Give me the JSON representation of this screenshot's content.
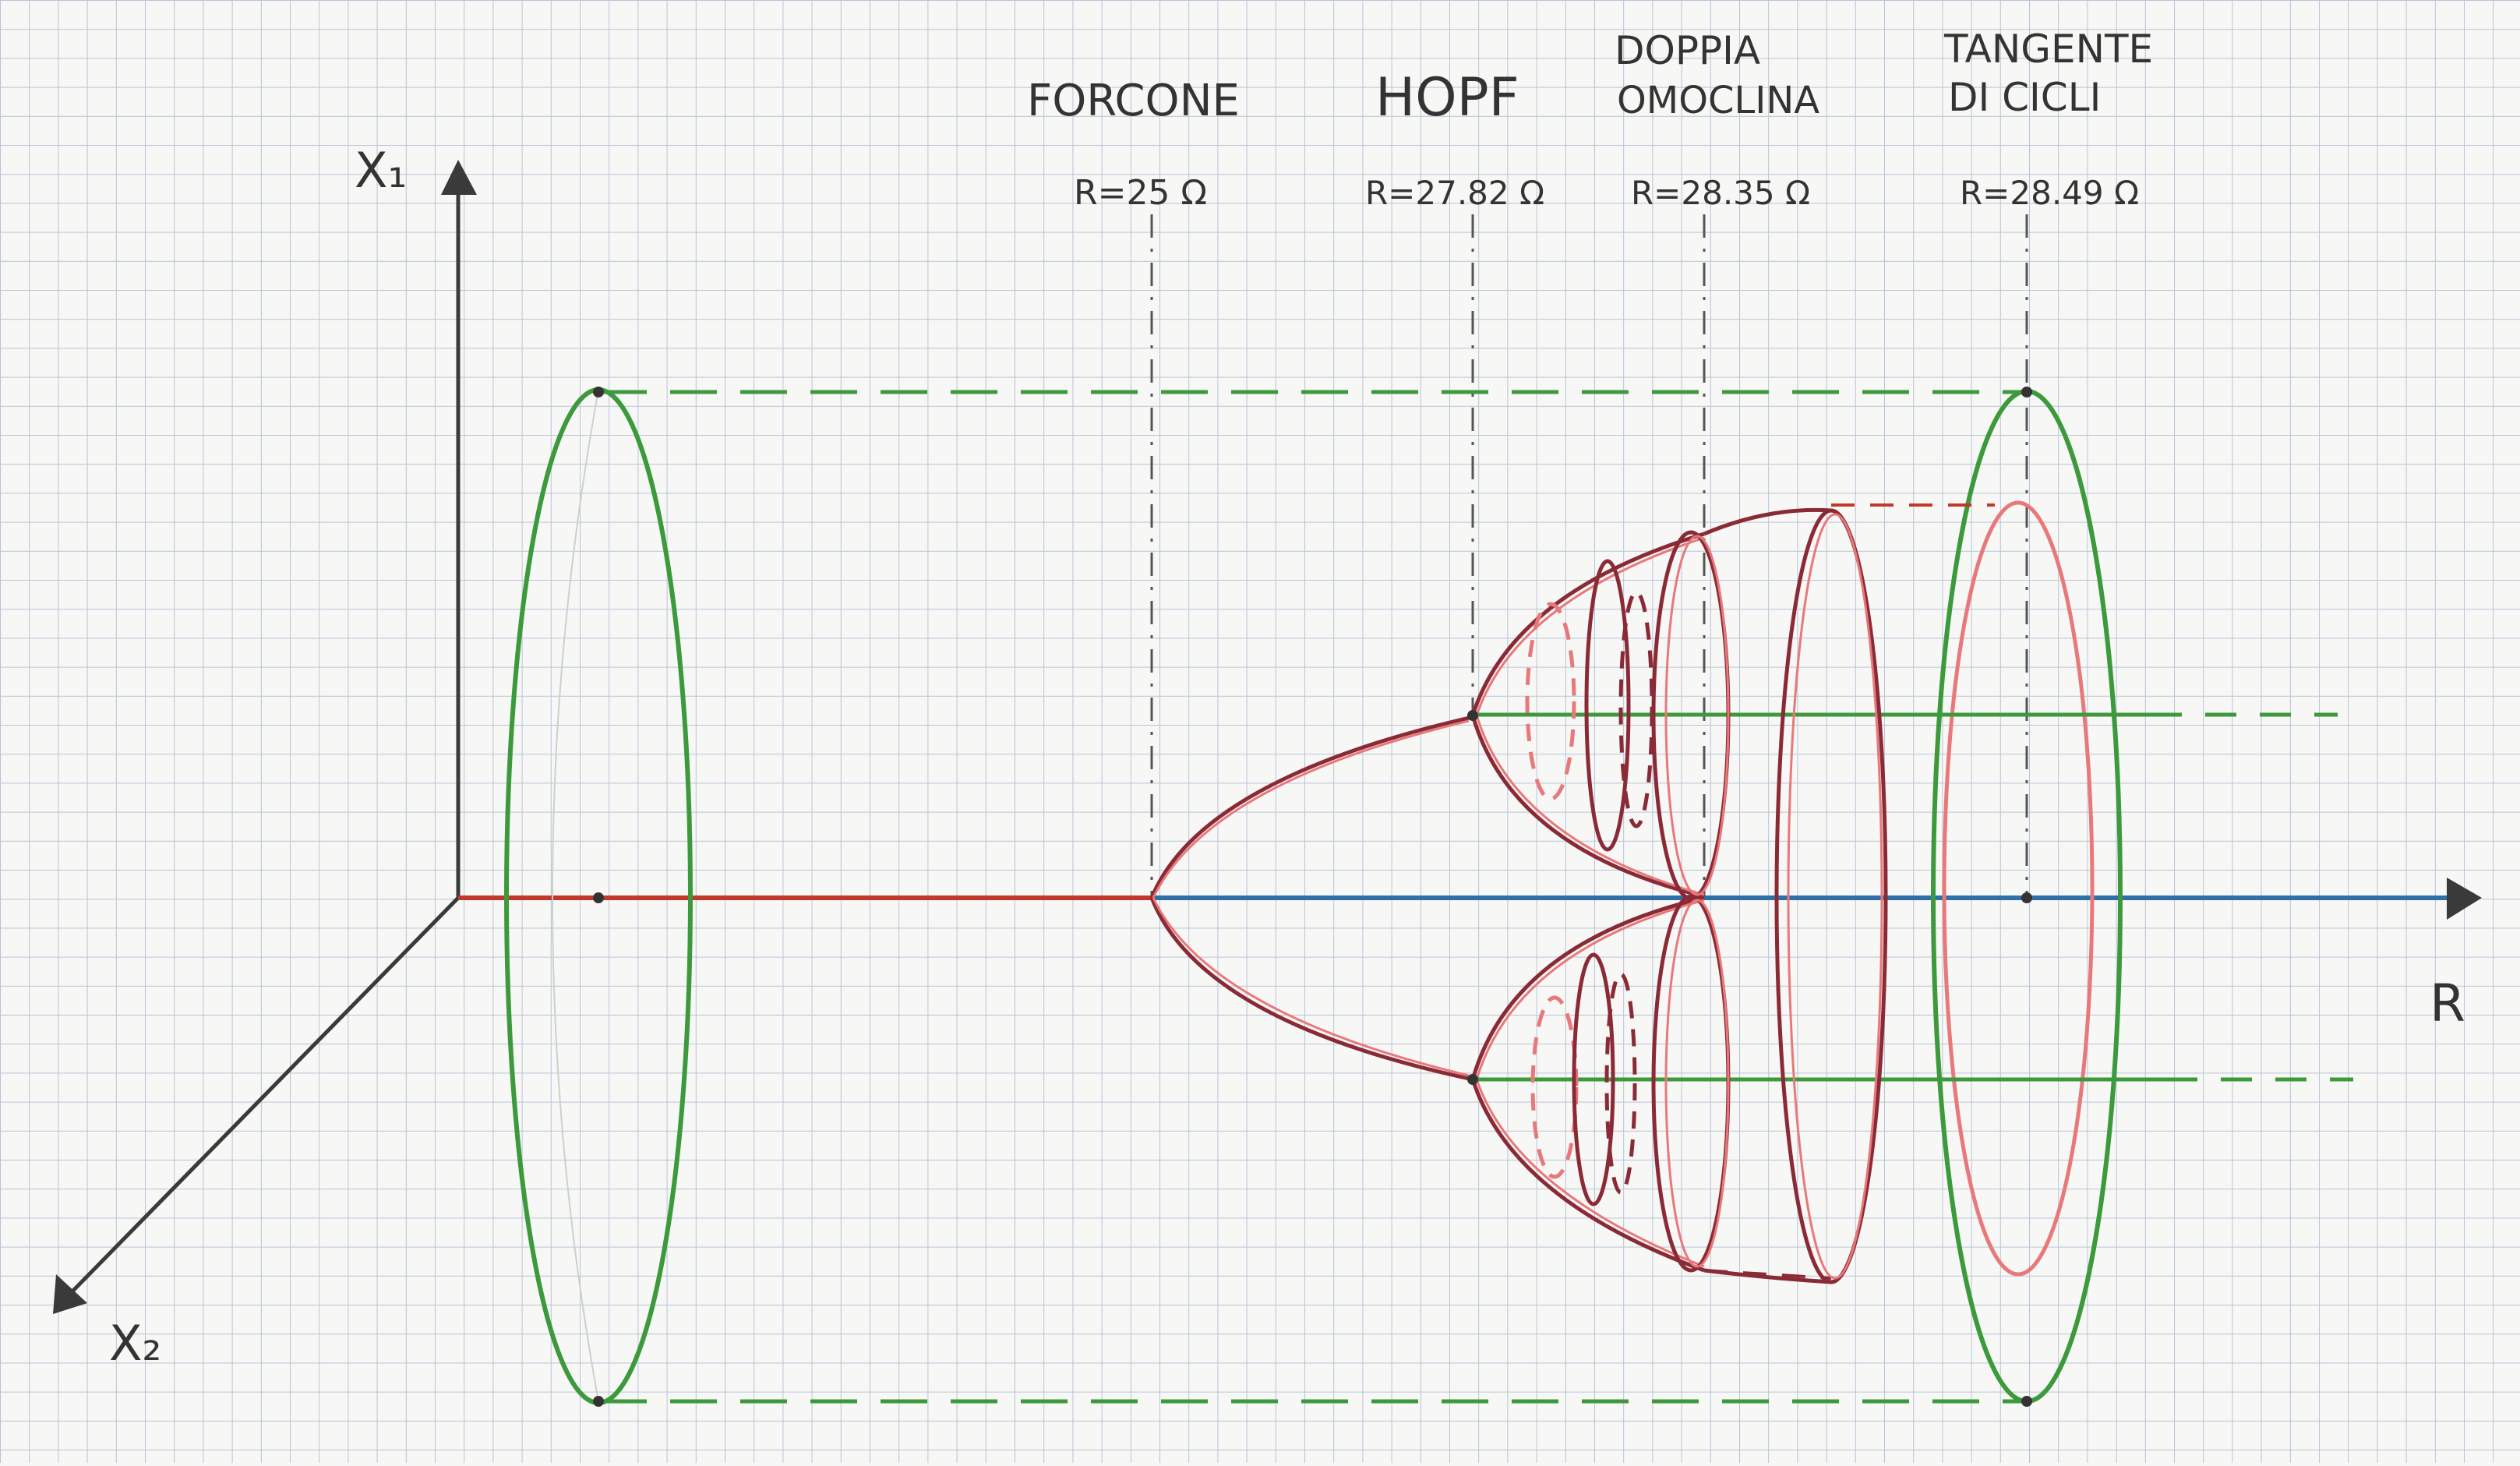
{
  "axes": {
    "x1_label": "X₁",
    "x2_label": "X₂",
    "r_label": "R"
  },
  "bifurcations": [
    {
      "name": "FORCONE",
      "value_text": "R=25 Ω"
    },
    {
      "name": "HOPF",
      "value_text": "R=27.82 Ω"
    },
    {
      "name_line1": "DOPPIA",
      "name_line2": "OMOCLINA",
      "value_text": "R=28.35 Ω"
    },
    {
      "name_line1": "TANGENTE",
      "name_line2": "DI CICLI",
      "value_text": "R=28.49 Ω"
    }
  ],
  "colors": {
    "grid": "#b8c4d8",
    "axis": "#3a3a3a",
    "stable_equilibrium": "#c0392b",
    "unstable_equilibrium": "#2f6fa8",
    "stable_cycle": "#3c9a3c",
    "unstable_cycle": "#e8787a",
    "branch": "#8a2a36",
    "dashdot": "#555555"
  }
}
